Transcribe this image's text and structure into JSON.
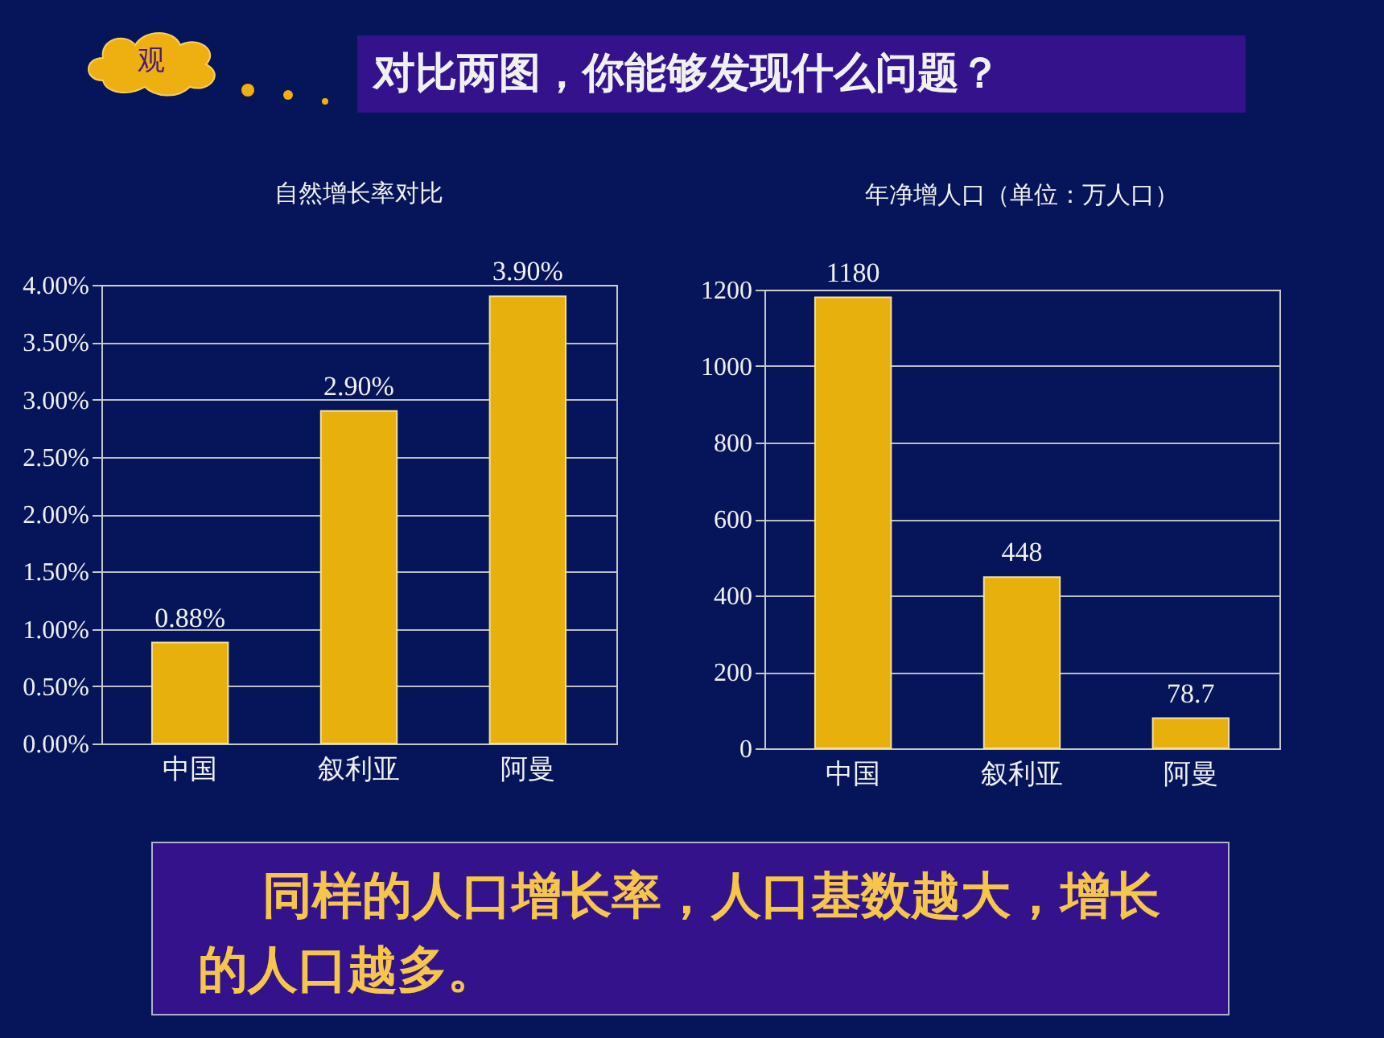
{
  "chart_data": [
    {
      "type": "bar",
      "title": "自然增长率对比",
      "categories": [
        "中国",
        "叙利亚",
        "阿曼"
      ],
      "values": [
        0.88,
        2.9,
        3.9
      ],
      "color": "#e8b00c",
      "value_labels": [
        "0.88%",
        "2.90%",
        "3.90%"
      ],
      "ylim": [
        0,
        4
      ],
      "yticks": [
        {
          "value": 0,
          "label": "0.00%"
        },
        {
          "value": 0.5,
          "label": "0.50%"
        },
        {
          "value": 1,
          "label": "1.00%"
        },
        {
          "value": 1.5,
          "label": "1.50%"
        },
        {
          "value": 2,
          "label": "2.00%"
        },
        {
          "value": 2.5,
          "label": "2.50%"
        },
        {
          "value": 3,
          "label": "3.00%"
        },
        {
          "value": 3.5,
          "label": "3.50%"
        },
        {
          "value": 4,
          "label": "4.00%"
        }
      ],
      "grid": "y"
    },
    {
      "type": "bar",
      "title": "年净增人口（单位：万人口）",
      "categories": [
        "中国",
        "叙利亚",
        "阿曼"
      ],
      "values": [
        1180,
        448,
        78.7
      ],
      "color": "#e8b00c",
      "data_labels": true,
      "ylim": [
        0,
        1200
      ],
      "yticks": [
        0,
        200,
        400,
        600,
        800,
        1000,
        1200
      ],
      "grid": "y"
    },
    {
      "type": "other",
      "title": "对比两图，你能够发现什么问题？",
      "annotations": [
        "观",
        "同样的人口增长率，人口基数越大，增长的人口越多。"
      ]
    }
  ]
}
